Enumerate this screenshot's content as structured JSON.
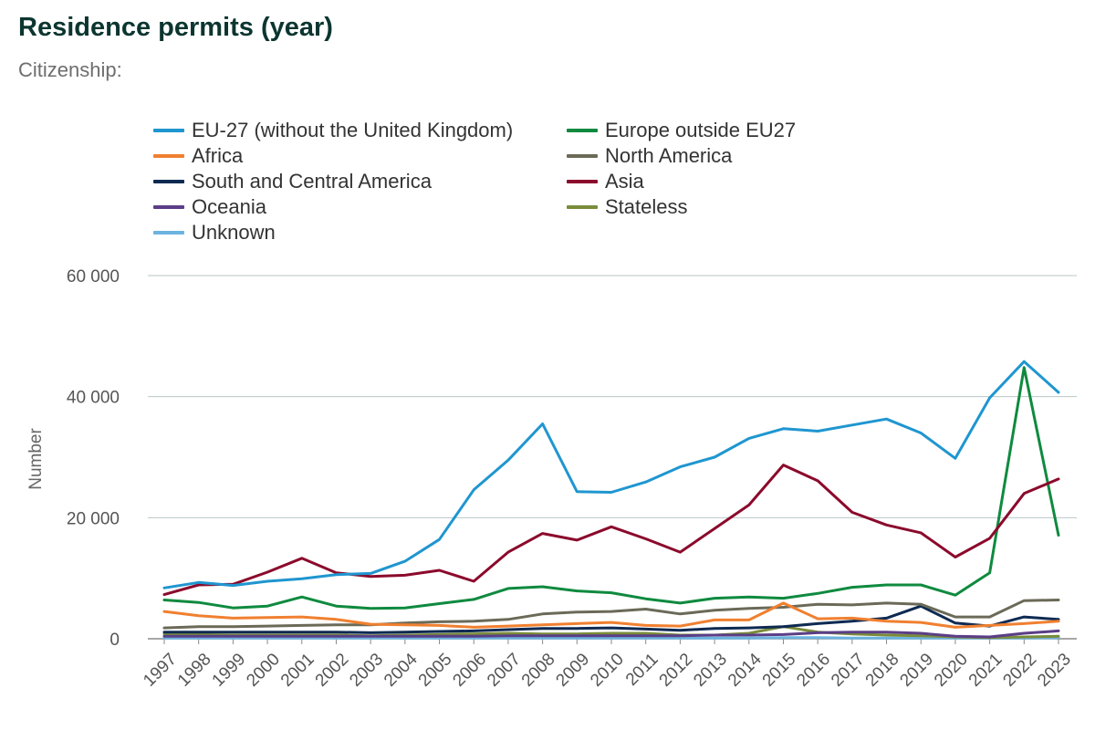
{
  "header": {
    "title": "Residence permits (year)",
    "subtitle": "Citizenship:"
  },
  "chart_data": {
    "type": "line",
    "title": "Residence permits (year)",
    "subtitle": "Citizenship:",
    "xlabel": "",
    "ylabel": "Number",
    "ylim": [
      0,
      60000
    ],
    "yticks": [
      0,
      20000,
      40000,
      60000
    ],
    "ytick_labels": [
      "0",
      "20 000",
      "40 000",
      "60 000"
    ],
    "grid": true,
    "legend_position": "top",
    "x": [
      "1997",
      "1998",
      "1999",
      "2000",
      "2001",
      "2002",
      "2003",
      "2004",
      "2005",
      "2006",
      "2007",
      "2008",
      "2009",
      "2010",
      "2011",
      "2012",
      "2013",
      "2014",
      "2015",
      "2016",
      "2017",
      "2018",
      "2019",
      "2020",
      "2021",
      "2022",
      "2023"
    ],
    "series": [
      {
        "name": "EU-27 (without the United Kingdom)",
        "color": "#1f96d0",
        "values": [
          8400,
          9300,
          8800,
          9500,
          9900,
          10600,
          10800,
          12800,
          16400,
          24600,
          29500,
          35500,
          24300,
          24200,
          25900,
          28400,
          30000,
          33100,
          34700,
          34300,
          35300,
          36300,
          34000,
          29800,
          39800,
          45800,
          40700
        ]
      },
      {
        "name": "Europe outside EU27",
        "color": "#0f8a3f",
        "values": [
          6400,
          6000,
          5100,
          5400,
          6900,
          5400,
          5000,
          5100,
          5800,
          6500,
          8300,
          8600,
          7900,
          7600,
          6600,
          5900,
          6700,
          6900,
          6700,
          7500,
          8500,
          8900,
          8900,
          7200,
          10900,
          44800,
          17100
        ]
      },
      {
        "name": "Africa",
        "color": "#f08030",
        "values": [
          4500,
          3800,
          3400,
          3500,
          3600,
          3200,
          2400,
          2300,
          2200,
          1900,
          2100,
          2300,
          2500,
          2700,
          2200,
          2100,
          3100,
          3100,
          5900,
          3300,
          3400,
          2900,
          2700,
          1900,
          2200,
          2500,
          2900
        ]
      },
      {
        "name": "North America",
        "color": "#6b6a58",
        "values": [
          1800,
          2000,
          2000,
          2100,
          2200,
          2300,
          2300,
          2600,
          2800,
          2900,
          3200,
          4100,
          4400,
          4500,
          4900,
          4100,
          4700,
          5000,
          5200,
          5700,
          5600,
          5900,
          5700,
          3600,
          3600,
          6300,
          6400
        ]
      },
      {
        "name": "South and Central America",
        "color": "#0e2a52",
        "values": [
          1100,
          1100,
          1100,
          1100,
          1100,
          1100,
          1000,
          1100,
          1200,
          1300,
          1500,
          1700,
          1700,
          1800,
          1600,
          1400,
          1700,
          1800,
          2000,
          2500,
          2900,
          3400,
          5400,
          2600,
          2100,
          3600,
          3200
        ]
      },
      {
        "name": "Asia",
        "color": "#8b0a2c",
        "values": [
          7300,
          8900,
          9000,
          11000,
          13300,
          10900,
          10300,
          10500,
          11300,
          9500,
          14300,
          17400,
          16300,
          18500,
          16500,
          14300,
          18200,
          22100,
          28700,
          26100,
          20900,
          18800,
          17500,
          13500,
          16600,
          24000,
          26400
        ]
      },
      {
        "name": "Oceania",
        "color": "#5b3e87",
        "values": [
          400,
          400,
          400,
          400,
          400,
          400,
          400,
          400,
          400,
          400,
          500,
          500,
          500,
          500,
          500,
          500,
          600,
          600,
          700,
          1000,
          1100,
          1100,
          900,
          400,
          300,
          900,
          1300
        ]
      },
      {
        "name": "Stateless",
        "color": "#7a8c3a",
        "values": [
          800,
          700,
          600,
          600,
          600,
          600,
          500,
          600,
          700,
          800,
          900,
          800,
          800,
          900,
          900,
          600,
          600,
          900,
          2000,
          1100,
          800,
          600,
          500,
          300,
          200,
          300,
          400
        ]
      },
      {
        "name": "Unknown",
        "color": "#6bb3e0",
        "values": [
          100,
          100,
          100,
          100,
          100,
          100,
          100,
          100,
          100,
          100,
          100,
          100,
          100,
          100,
          100,
          100,
          100,
          100,
          200,
          200,
          100,
          100,
          100,
          100,
          100,
          100,
          200
        ]
      }
    ]
  }
}
